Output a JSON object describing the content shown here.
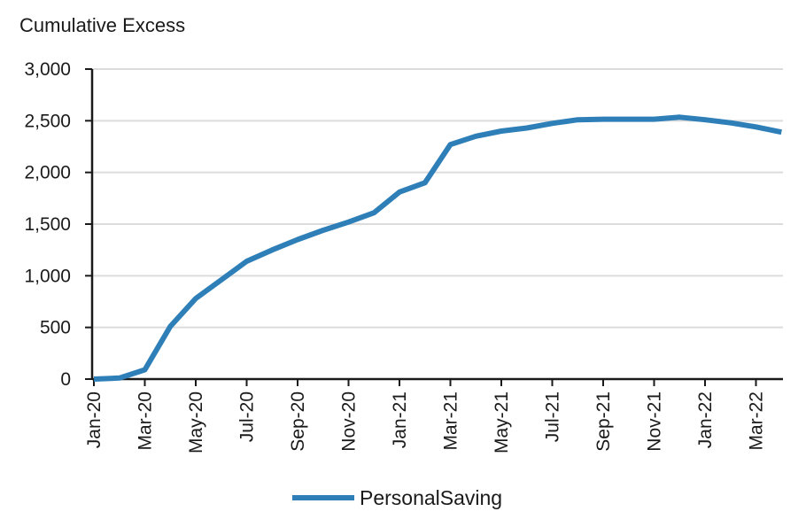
{
  "chart_data": {
    "type": "line",
    "title": "",
    "ylabel": "Cumulative Excess",
    "xlabel": "",
    "ylim": [
      0,
      3000
    ],
    "y_ticks": [
      0,
      500,
      1000,
      1500,
      2000,
      2500,
      3000
    ],
    "y_tick_labels": [
      "0",
      "500",
      "1,000",
      "1,500",
      "2,000",
      "2,500",
      "3,000"
    ],
    "x_tick_labels": [
      "Jan-20",
      "Mar-20",
      "May-20",
      "Jul-20",
      "Sep-20",
      "Nov-20",
      "Jan-21",
      "Mar-21",
      "May-21",
      "Jul-21",
      "Sep-21",
      "Nov-21",
      "Jan-22",
      "Mar-22"
    ],
    "x": [
      "Jan-20",
      "Feb-20",
      "Mar-20",
      "Apr-20",
      "May-20",
      "Jun-20",
      "Jul-20",
      "Aug-20",
      "Sep-20",
      "Oct-20",
      "Nov-20",
      "Dec-20",
      "Jan-21",
      "Feb-21",
      "Mar-21",
      "Apr-21",
      "May-21",
      "Jun-21",
      "Jul-21",
      "Aug-21",
      "Sep-21",
      "Oct-21",
      "Nov-21",
      "Dec-21",
      "Jan-22",
      "Feb-22",
      "Mar-22",
      "Apr-22"
    ],
    "series": [
      {
        "name": "PersonalSaving",
        "color": "#2e7fb8",
        "values": [
          0,
          10,
          90,
          510,
          780,
          960,
          1140,
          1250,
          1350,
          1440,
          1520,
          1610,
          1810,
          1900,
          2270,
          2350,
          2400,
          2430,
          2475,
          2510,
          2515,
          2515,
          2515,
          2535,
          2510,
          2480,
          2440,
          2390
        ]
      }
    ],
    "grid": "horizontal",
    "legend_position": "bottom"
  }
}
